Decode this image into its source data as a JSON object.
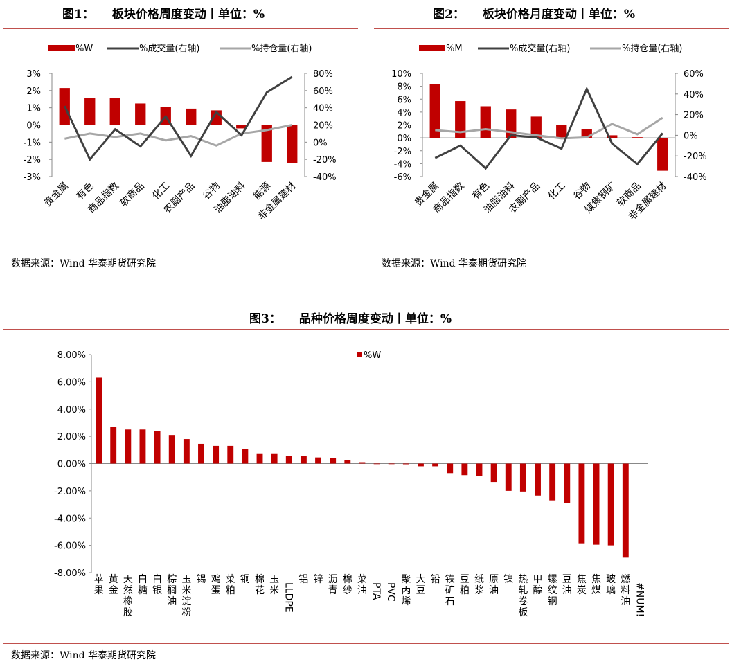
{
  "fig1": {
    "num": "图1：",
    "title": "板块价格周度变动丨单位：%",
    "source": "数据来源：Wind 华泰期货研究院",
    "chart_data": {
      "type": "bar",
      "legend": {
        "bar": "%W",
        "line1": "%成交量(右轴)",
        "line2": "%持仓量(右轴)"
      },
      "categories": [
        "贵金属",
        "有色",
        "商品指数",
        "软商品",
        "化工",
        "农副产品",
        "谷物",
        "油脂油料",
        "能源",
        "非金属建材"
      ],
      "bars": [
        2.15,
        1.55,
        1.55,
        1.25,
        1.05,
        0.95,
        0.85,
        -0.2,
        -2.15,
        -2.2
      ],
      "line1": [
        42,
        -20,
        15,
        -5,
        30,
        -16,
        35,
        8,
        58,
        76
      ],
      "line2": [
        4,
        10,
        6,
        10,
        2,
        7,
        -4,
        10,
        14,
        20
      ],
      "ylim_left": [
        -3,
        3
      ],
      "yticks_left": [
        "3%",
        "2%",
        "1%",
        "0%",
        "-1%",
        "-2%",
        "-3%"
      ],
      "ylim_right": [
        -40,
        80
      ],
      "yticks_right": [
        "80%",
        "60%",
        "40%",
        "20%",
        "0%",
        "-20%",
        "-40%"
      ]
    }
  },
  "fig2": {
    "num": "图2：",
    "title": "板块价格月度变动丨单位：%",
    "source": "数据来源：Wind 华泰期货研究院",
    "chart_data": {
      "type": "bar",
      "legend": {
        "bar": "%M",
        "line1": "%成交量(右轴)",
        "line2": "%持仓量(右轴)"
      },
      "categories": [
        "贵金属",
        "商品指数",
        "有色",
        "油脂油料",
        "农副产品",
        "化工",
        "谷物",
        "煤焦钢矿",
        "软商品",
        "非金属建材"
      ],
      "bars": [
        8.3,
        5.7,
        4.9,
        4.4,
        3.3,
        2.0,
        1.3,
        0.4,
        0.1,
        -5.1
      ],
      "line1": [
        -22,
        -10,
        -32,
        0,
        -2,
        -13,
        45,
        -8,
        -28,
        2
      ],
      "line2": [
        5,
        3,
        6,
        3,
        0,
        -3,
        -2,
        11,
        1,
        17
      ],
      "ylim_left": [
        -6,
        10
      ],
      "yticks_left": [
        "10%",
        "8%",
        "6%",
        "4%",
        "2%",
        "0%",
        "-2%",
        "-4%",
        "-6%"
      ],
      "ylim_right": [
        -40,
        60
      ],
      "yticks_right": [
        "60%",
        "40%",
        "20%",
        "0%",
        "-20%",
        "-40%"
      ]
    }
  },
  "fig3": {
    "num": "图3：",
    "title": "品种价格周度变动丨单位：%",
    "source": "数据来源：Wind 华泰期货研究院",
    "chart_data": {
      "type": "bar",
      "legend": "%W",
      "categories": [
        "苹果",
        "黄金",
        "天然橡胶",
        "白糖",
        "白银",
        "棕榈油",
        "玉米淀粉",
        "锡",
        "鸡蛋",
        "菜粕",
        "铜",
        "棉花",
        "玉米",
        "LLDPE",
        "铝",
        "锌",
        "沥青",
        "棉纱",
        "菜油",
        "PTA",
        "PVC",
        "聚丙烯",
        "大豆",
        "铅",
        "铁矿石",
        "豆粕",
        "纸浆",
        "原油",
        "镍",
        "热轧卷板",
        "甲醇",
        "螺纹钢",
        "豆油",
        "焦炭",
        "焦煤",
        "玻璃",
        "燃料油",
        "#NUM!"
      ],
      "values": [
        6.3,
        2.7,
        2.5,
        2.5,
        2.4,
        2.1,
        1.8,
        1.45,
        1.3,
        1.3,
        1.05,
        0.75,
        0.75,
        0.55,
        0.55,
        0.45,
        0.4,
        0.25,
        0.1,
        0.0,
        -0.03,
        -0.05,
        -0.2,
        -0.2,
        -0.7,
        -0.85,
        -0.9,
        -1.35,
        -2.0,
        -2.05,
        -2.35,
        -2.7,
        -2.9,
        -5.85,
        -5.95,
        -6.0,
        -6.9,
        0
      ],
      "ylim": [
        -8,
        8
      ],
      "yticks": [
        "8.00%",
        "6.00%",
        "4.00%",
        "2.00%",
        "0.00%",
        "-2.00%",
        "-4.00%",
        "-6.00%",
        "-8.00%"
      ]
    }
  }
}
